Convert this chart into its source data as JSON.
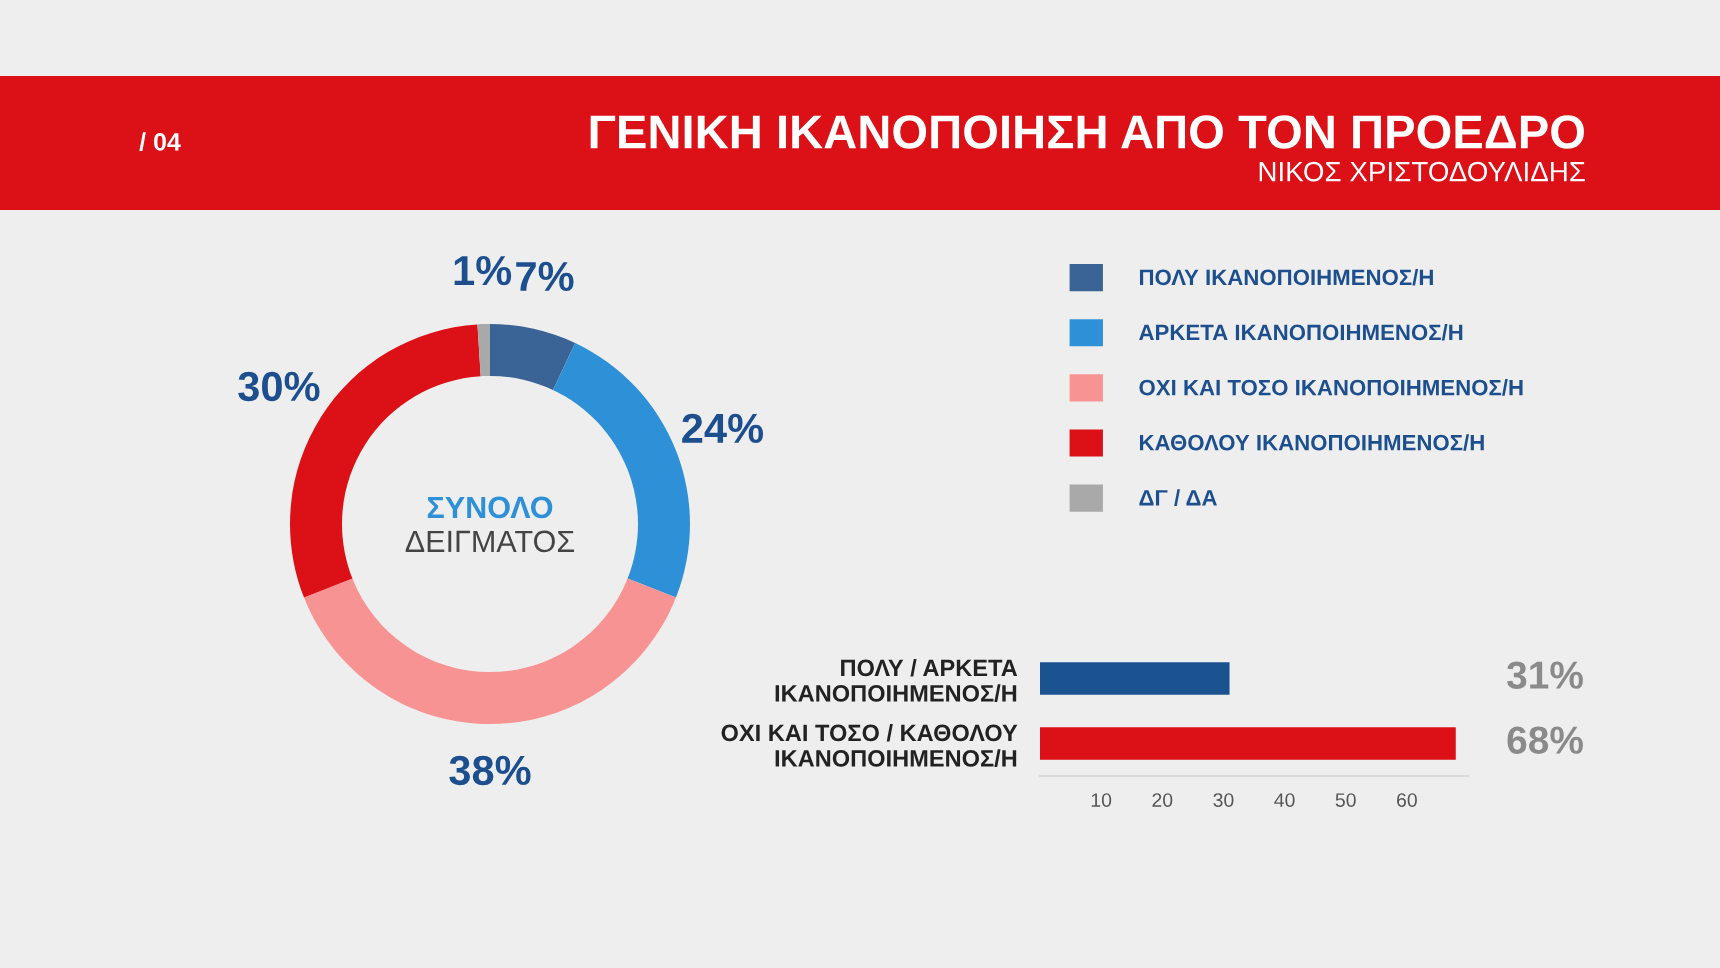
{
  "chart_data": [
    {
      "type": "other",
      "title": "ΓΕΝΙΚΗ ΙΚΑΝΟΠΟΙΗΣΗ ΑΠΟ ΤΟΝ ΠΡΟΕΔΡΟ",
      "subtitle": "ΝΙΚΟΣ ΧΡΙΣΤΟΔΟΥΛΙΔΗΣ",
      "annotations": [
        "/ 04"
      ]
    },
    {
      "type": "donut",
      "categories": [
        "ΠΟΛΥ ΙΚΑΝΟΠΟΙΗΜΕΝΟΣ/Η",
        "ΑΡΚΕΤΑ ΙΚΑΝΟΠΟΙΗΜΕΝΟΣ/Η",
        "ΟΧΙ ΚΑΙ ΤΟΣΟ ΙΚΑΝΟΠΟΙΗΜΕΝΟΣ/Η",
        "ΚΑΘΟΛΟΥ ΙΚΑΝΟΠΟΙΗΜΕΝΟΣ/Η",
        "ΔΓ / ΔΑ"
      ],
      "values": [
        7,
        24,
        38,
        30,
        1
      ],
      "colors": [
        "#3a6396",
        "#2e90d6",
        "#f79392",
        "#dc1118",
        "#a9a9a9"
      ],
      "value_labels": [
        "7%",
        "24%",
        "38%",
        "30%",
        "1%"
      ],
      "legend": "right",
      "annotations": [
        "ΣΥΝΟΛΟ",
        "ΔΕΙΓΜΑΤΟΣ"
      ]
    },
    {
      "type": "bar",
      "orientation": "horizontal",
      "categories": [
        "ΠΟΛΥ / ΑΡΚΕΤΑ\nΙΚΑΝΟΠΟΙΗΜΕΝΟΣ/Η",
        "ΟΧΙ ΚΑΙ ΤΟΣΟ / ΚΑΘΟΛΟΥ\nΙΚΑΝΟΠΟΙΗΜΕΝΟΣ/Η"
      ],
      "values": [
        31,
        68
      ],
      "colors": [
        "#1b5290",
        "#dc1118"
      ],
      "value_labels": [
        "31%",
        "68%"
      ],
      "xlim": [
        0,
        70
      ],
      "xticks": [
        10,
        20,
        30,
        40,
        50,
        60
      ]
    }
  ]
}
